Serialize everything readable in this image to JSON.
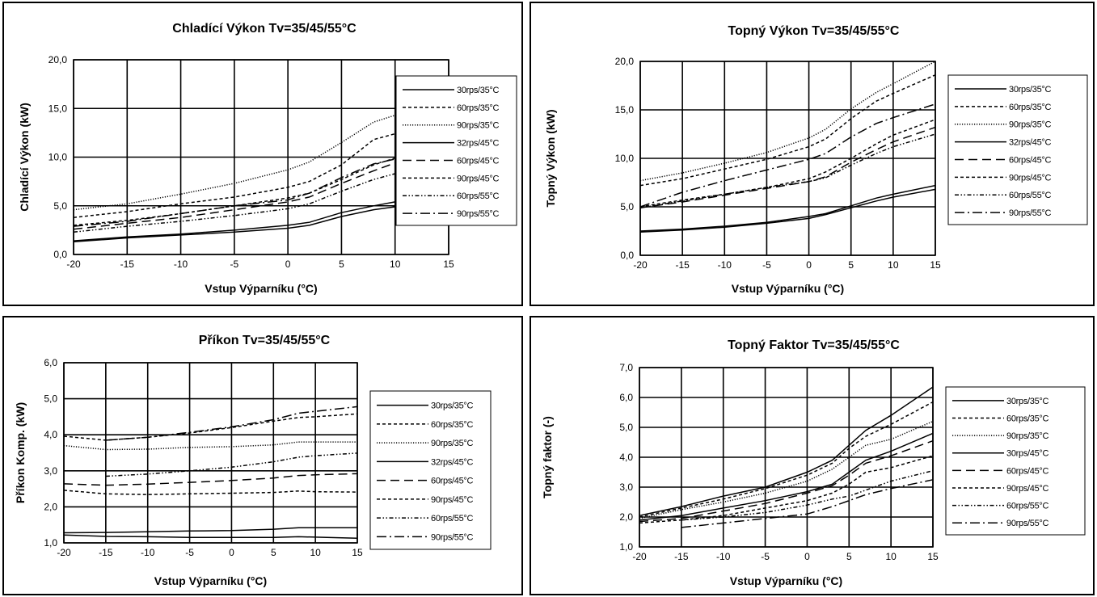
{
  "chart_data": [
    {
      "type": "line",
      "title": "Chladící Výkon Tv=35/45/55°C",
      "xlabel": "Vstup Výparníku (°C)",
      "ylabel": "Chladící Výkon (kW)",
      "xlim": [
        -20,
        15
      ],
      "ylim": [
        0,
        20
      ],
      "xticks": [
        "-20",
        "-15",
        "-10",
        "-5",
        "0",
        "5",
        "10",
        "15"
      ],
      "yticks": [
        "0,0",
        "5,0",
        "10,0",
        "15,0",
        "20,0"
      ],
      "legend_position": "right",
      "grid": true,
      "series": [
        {
          "name": "30rps/35°C",
          "dash": "solid",
          "x": [
            -20,
            -15,
            -10,
            -5,
            0,
            2,
            5,
            8,
            10,
            15
          ],
          "y": [
            1.4,
            1.8,
            2.1,
            2.5,
            3.0,
            3.3,
            4.3,
            5.0,
            5.4,
            6.3
          ]
        },
        {
          "name": "60rps/35°C",
          "dash": "dash",
          "x": [
            -20,
            -15,
            -10,
            -5,
            0,
            2,
            5,
            8,
            10,
            15
          ],
          "y": [
            3.0,
            3.5,
            4.2,
            5.0,
            5.8,
            6.3,
            7.7,
            9.2,
            9.9,
            11.1
          ]
        },
        {
          "name": "90rps/35°C",
          "dash": "dot",
          "x": [
            -20,
            -15,
            -10,
            -5,
            0,
            2,
            5,
            8,
            10,
            15
          ],
          "y": [
            4.6,
            5.2,
            6.2,
            7.3,
            8.7,
            9.5,
            11.5,
            13.6,
            14.3,
            16.6
          ]
        },
        {
          "name": "32rps/45°C",
          "dash": "solid",
          "x": [
            -20,
            -15,
            -10,
            -5,
            0,
            2,
            5,
            8,
            10,
            15
          ],
          "y": [
            1.3,
            1.7,
            2.0,
            2.3,
            2.7,
            3.0,
            3.9,
            4.6,
            4.9,
            5.6
          ]
        },
        {
          "name": "60rps/45°C",
          "dash": "longdash",
          "x": [
            -20,
            -15,
            -10,
            -5,
            0,
            2,
            5,
            8,
            10,
            15
          ],
          "y": [
            2.6,
            3.2,
            3.8,
            4.6,
            5.4,
            5.9,
            7.3,
            8.6,
            9.4,
            10.8
          ]
        },
        {
          "name": "90rps/45°C",
          "dash": "dash",
          "x": [
            -20,
            -15,
            -10,
            -5,
            0,
            2,
            5,
            8,
            10,
            15
          ],
          "y": [
            3.8,
            4.4,
            5.2,
            5.9,
            6.9,
            7.5,
            9.2,
            11.8,
            12.4,
            14.6
          ]
        },
        {
          "name": "60rps/55°C",
          "dash": "dashdotdot",
          "x": [
            -20,
            -15,
            -10,
            -5,
            0,
            2,
            5,
            8,
            10,
            15
          ],
          "y": [
            2.3,
            2.9,
            3.4,
            4.0,
            4.7,
            5.2,
            6.5,
            7.7,
            8.3,
            9.3
          ]
        },
        {
          "name": "90rps/55°C",
          "dash": "dashdot",
          "x": [
            -20,
            -15,
            -10,
            -5,
            0,
            2,
            5,
            8,
            10,
            15
          ],
          "y": [
            2.9,
            3.4,
            4.2,
            5.0,
            5.6,
            6.3,
            7.9,
            9.3,
            9.8,
            11.3
          ]
        }
      ]
    },
    {
      "type": "line",
      "title": "Topný Výkon Tv=35/45/55°C",
      "xlabel": "Vstup Výparníku (°C)",
      "ylabel": "Topný Výkon (kW)",
      "xlim": [
        -20,
        15
      ],
      "ylim": [
        0,
        20
      ],
      "xticks": [
        "-20",
        "-15",
        "-10",
        "-5",
        "0",
        "5",
        "10",
        "15"
      ],
      "yticks": [
        "0,0",
        "5,0",
        "10,0",
        "15,0",
        "20,0"
      ],
      "legend_position": "right",
      "grid": true,
      "series": [
        {
          "name": "30rps/35°C",
          "dash": "solid",
          "x": [
            -20,
            -15,
            -10,
            -5,
            0,
            2,
            5,
            8,
            10,
            15
          ],
          "y": [
            2.5,
            2.7,
            3.0,
            3.4,
            4.0,
            4.3,
            5.1,
            5.9,
            6.3,
            7.2
          ]
        },
        {
          "name": "60rps/35°C",
          "dash": "dash",
          "x": [
            -20,
            -15,
            -10,
            -5,
            0,
            2,
            5,
            8,
            10,
            15
          ],
          "y": [
            5.0,
            5.7,
            6.3,
            7.0,
            7.9,
            8.6,
            10.0,
            11.5,
            12.4,
            14.0
          ]
        },
        {
          "name": "90rps/35°C",
          "dash": "dot",
          "x": [
            -20,
            -15,
            -10,
            -5,
            0,
            2,
            5,
            8,
            10,
            15
          ],
          "y": [
            7.7,
            8.5,
            9.5,
            10.6,
            12.1,
            13.0,
            15.1,
            16.8,
            17.7,
            20.0
          ]
        },
        {
          "name": "32rps/45°C",
          "dash": "solid",
          "x": [
            -20,
            -15,
            -10,
            -5,
            0,
            2,
            5,
            8,
            10,
            15
          ],
          "y": [
            2.4,
            2.6,
            2.9,
            3.3,
            3.8,
            4.2,
            4.9,
            5.6,
            6.0,
            6.8
          ]
        },
        {
          "name": "60rps/45°C",
          "dash": "longdash",
          "x": [
            -20,
            -15,
            -10,
            -5,
            0,
            2,
            5,
            8,
            10,
            15
          ],
          "y": [
            4.9,
            5.5,
            6.2,
            6.9,
            7.6,
            8.1,
            9.6,
            10.9,
            11.7,
            13.2
          ]
        },
        {
          "name": "90rps/45°C",
          "dash": "dash",
          "x": [
            -20,
            -15,
            -10,
            -5,
            0,
            2,
            5,
            8,
            10,
            15
          ],
          "y": [
            7.2,
            7.9,
            8.9,
            9.9,
            11.2,
            12.0,
            14.1,
            15.9,
            16.7,
            18.6
          ]
        },
        {
          "name": "60rps/55°C",
          "dash": "dashdotdot",
          "x": [
            -20,
            -15,
            -10,
            -5,
            0,
            2,
            5,
            8,
            10,
            15
          ],
          "y": [
            4.9,
            5.6,
            6.3,
            7.0,
            7.6,
            8.0,
            9.3,
            10.5,
            11.2,
            12.5
          ]
        },
        {
          "name": "90rps/55°C",
          "dash": "dashdot",
          "x": [
            -20,
            -15,
            -10,
            -5,
            0,
            2,
            5,
            8,
            10,
            15
          ],
          "y": [
            5.0,
            6.5,
            7.7,
            8.8,
            9.9,
            10.5,
            12.2,
            13.6,
            14.2,
            15.6
          ]
        }
      ]
    },
    {
      "type": "line",
      "title": "Příkon Tv=35/45/55°C",
      "xlabel": "Vstup Výparníku (°C)",
      "ylabel": "Příkon Komp. (kW)",
      "xlim": [
        -20,
        15
      ],
      "ylim": [
        1,
        6
      ],
      "xticks": [
        "-20",
        "-15",
        "-10",
        "-5",
        "0",
        "5",
        "10",
        "15"
      ],
      "yticks": [
        "1,0",
        "2,0",
        "3,0",
        "4,0",
        "5,0",
        "6,0"
      ],
      "legend_position": "right",
      "grid": true,
      "series": [
        {
          "name": "30rps/35°C",
          "dash": "solid",
          "x": [
            -20,
            -15,
            -10,
            -5,
            0,
            5,
            8,
            10,
            15
          ],
          "y": [
            1.28,
            1.29,
            1.31,
            1.33,
            1.34,
            1.38,
            1.42,
            1.42,
            1.42
          ]
        },
        {
          "name": "60rps/35°C",
          "dash": "dash",
          "x": [
            -20,
            -15,
            -10,
            -5,
            0,
            5,
            8,
            10,
            15
          ],
          "y": [
            2.46,
            2.36,
            2.34,
            2.36,
            2.38,
            2.4,
            2.44,
            2.42,
            2.41
          ]
        },
        {
          "name": "90rps/35°C",
          "dash": "dot",
          "x": [
            -20,
            -15,
            -10,
            -5,
            0,
            5,
            8,
            10,
            15
          ],
          "y": [
            3.7,
            3.59,
            3.6,
            3.65,
            3.67,
            3.72,
            3.8,
            3.8,
            3.8
          ]
        },
        {
          "name": "32rps/45°C",
          "dash": "solid",
          "x": [
            -20,
            -15,
            -10,
            -5,
            0,
            5,
            8,
            10,
            15
          ],
          "y": [
            1.22,
            1.18,
            1.17,
            1.15,
            1.15,
            1.15,
            1.17,
            1.16,
            1.13
          ]
        },
        {
          "name": "60rps/45°C",
          "dash": "longdash",
          "x": [
            -20,
            -15,
            -10,
            -5,
            0,
            5,
            8,
            10,
            15
          ],
          "y": [
            2.64,
            2.6,
            2.63,
            2.68,
            2.73,
            2.8,
            2.87,
            2.89,
            2.92
          ]
        },
        {
          "name": "90rps/45°C",
          "dash": "dash",
          "x": [
            -20,
            -15,
            -10,
            -5,
            0,
            5,
            8,
            10,
            15
          ],
          "y": [
            3.96,
            3.85,
            3.93,
            4.05,
            4.2,
            4.38,
            4.48,
            4.5,
            4.58
          ]
        },
        {
          "name": "60rps/55°C",
          "dash": "dashdotdot",
          "x": [
            -15,
            -10,
            -5,
            0,
            5,
            8,
            10,
            15
          ],
          "y": [
            2.85,
            2.91,
            3.0,
            3.1,
            3.25,
            3.38,
            3.42,
            3.49
          ]
        },
        {
          "name": "90rps/55°C",
          "dash": "dashdot",
          "x": [
            -15,
            -10,
            -5,
            0,
            5,
            8,
            10,
            15
          ],
          "y": [
            3.85,
            3.93,
            4.07,
            4.22,
            4.42,
            4.6,
            4.65,
            4.78
          ]
        }
      ]
    },
    {
      "type": "line",
      "title": "Topný Faktor Tv=35/45/55°C",
      "xlabel": "Vstup Výparníku (°C)",
      "ylabel": "Topný faktor (-)",
      "xlim": [
        -20,
        15
      ],
      "ylim": [
        1,
        7
      ],
      "xticks": [
        "-20",
        "-15",
        "-10",
        "-5",
        "0",
        "5",
        "10",
        "15"
      ],
      "yticks": [
        "1,0",
        "2,0",
        "3,0",
        "4,0",
        "5,0",
        "6,0",
        "7,0"
      ],
      "legend_position": "right",
      "grid": true,
      "series": [
        {
          "name": "30rps/35°C",
          "dash": "solid",
          "x": [
            -20,
            -15,
            -10,
            -5,
            0,
            3,
            5,
            7,
            10,
            15
          ],
          "y": [
            2.05,
            2.35,
            2.7,
            3.0,
            3.5,
            3.9,
            4.4,
            4.9,
            5.4,
            6.35
          ]
        },
        {
          "name": "60rps/35°C",
          "dash": "dash",
          "x": [
            -20,
            -15,
            -10,
            -5,
            0,
            3,
            5,
            7,
            10,
            15
          ],
          "y": [
            2.0,
            2.3,
            2.6,
            2.95,
            3.4,
            3.8,
            4.3,
            4.7,
            5.1,
            5.85
          ]
        },
        {
          "name": "90rps/35°C",
          "dash": "dot",
          "x": [
            -20,
            -15,
            -10,
            -5,
            0,
            3,
            5,
            7,
            10,
            15
          ],
          "y": [
            1.95,
            2.25,
            2.5,
            2.8,
            3.2,
            3.6,
            4.0,
            4.4,
            4.6,
            5.2
          ]
        },
        {
          "name": "30rps/45°C",
          "dash": "solid",
          "x": [
            -20,
            -15,
            -10,
            -5,
            0,
            3,
            5,
            7,
            10,
            15
          ],
          "y": [
            1.9,
            2.05,
            2.3,
            2.55,
            2.85,
            3.1,
            3.5,
            3.9,
            4.2,
            4.8
          ]
        },
        {
          "name": "60rps/45°C",
          "dash": "longdash",
          "x": [
            -20,
            -15,
            -10,
            -5,
            0,
            3,
            5,
            7,
            10,
            15
          ],
          "y": [
            1.85,
            1.95,
            2.2,
            2.45,
            2.8,
            3.05,
            3.4,
            3.8,
            4.05,
            4.55
          ]
        },
        {
          "name": "90rps/45°C",
          "dash": "dash",
          "x": [
            -20,
            -15,
            -10,
            -5,
            0,
            3,
            5,
            7,
            10,
            15
          ],
          "y": [
            1.8,
            1.9,
            2.05,
            2.3,
            2.55,
            2.8,
            3.1,
            3.5,
            3.65,
            4.05
          ]
        },
        {
          "name": "60rps/55°C",
          "dash": "dashdotdot",
          "x": [
            -15,
            -10,
            -5,
            0,
            3,
            5,
            7,
            10,
            15
          ],
          "y": [
            1.9,
            2.0,
            2.15,
            2.4,
            2.6,
            2.7,
            2.9,
            3.2,
            3.55
          ]
        },
        {
          "name": "90rps/55°C",
          "dash": "dashdot",
          "x": [
            -15,
            -10,
            -5,
            0,
            3,
            5,
            7,
            10,
            15
          ],
          "y": [
            1.65,
            1.8,
            1.95,
            2.1,
            2.35,
            2.55,
            2.75,
            2.95,
            3.25
          ]
        }
      ]
    }
  ]
}
